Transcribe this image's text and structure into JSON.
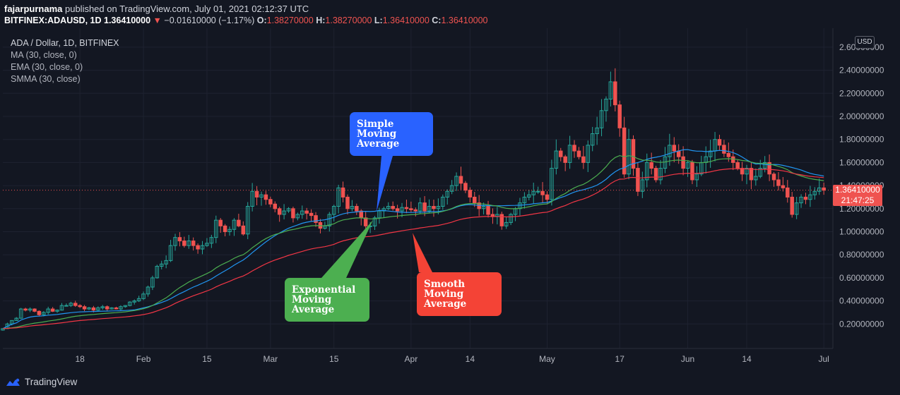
{
  "header": {
    "publisher": "fajarpurnama",
    "published_text": " published on TradingView.com, July 01, 2021 02:12:37 UTC",
    "symbol": "BITFINEX:ADAUSD, 1D",
    "last": "1.36410000",
    "change_arrow": "▼",
    "change": "−0.01610000 (−1.17%)",
    "o_label": "O:",
    "o_value": "1.38270000",
    "h_label": "H:",
    "h_value": "1.38270000",
    "l_label": "L:",
    "l_value": "1.36410000",
    "c_label": "C:",
    "c_value": "1.36410000"
  },
  "legend": {
    "title": "ADA / Dollar, 1D, BITFINEX",
    "ma": "MA (30, close, 0)",
    "ema": "EMA (30, close, 0)",
    "smma": "SMMA (30, close)"
  },
  "price_axis": {
    "currency_button": "USD",
    "current_price": "1.36410000",
    "countdown": "21:47:25"
  },
  "callouts": {
    "sma": "Simple Moving Average",
    "ema": "Exponential Moving Average",
    "smma": "Smooth Moving Average"
  },
  "footer": {
    "brand": "TradingView"
  },
  "colors": {
    "background": "#131722",
    "up": "#26a69a",
    "down": "#ef5350",
    "ma_line": "#2196f3",
    "ema_line": "#4caf50",
    "smma_line": "#f23645",
    "callout_sma": "#2962ff",
    "callout_ema": "#4caf50",
    "callout_smma": "#f44336"
  },
  "chart_data": {
    "type": "candlestick",
    "title": "ADA / Dollar, 1D, BITFINEX",
    "ylim": [
      0.0,
      2.6
    ],
    "y_ticks": [
      "0.20000000",
      "0.40000000",
      "0.60000000",
      "0.80000000",
      "1.00000000",
      "1.20000000",
      "1.40000000",
      "1.60000000",
      "1.80000000",
      "2.00000000",
      "2.20000000",
      "2.40000000",
      "2.60000000"
    ],
    "x_ticks": [
      {
        "label": "18",
        "day": 18
      },
      {
        "label": "Feb",
        "day": 32
      },
      {
        "label": "15",
        "day": 46
      },
      {
        "label": "Mar",
        "day": 60
      },
      {
        "label": "15",
        "day": 74
      },
      {
        "label": "Apr",
        "day": 91
      },
      {
        "label": "14",
        "day": 104
      },
      {
        "label": "May",
        "day": 121
      },
      {
        "label": "17",
        "day": 137
      },
      {
        "label": "Jun",
        "day": 152
      },
      {
        "label": "14",
        "day": 165
      },
      {
        "label": "Jul",
        "day": 182
      }
    ],
    "day_range": [
      1,
      184
    ],
    "close": [
      0.16,
      0.2,
      0.23,
      0.25,
      0.33,
      0.32,
      0.33,
      0.31,
      0.28,
      0.3,
      0.33,
      0.31,
      0.32,
      0.36,
      0.36,
      0.38,
      0.36,
      0.35,
      0.33,
      0.34,
      0.32,
      0.34,
      0.35,
      0.33,
      0.34,
      0.33,
      0.35,
      0.36,
      0.39,
      0.4,
      0.42,
      0.46,
      0.52,
      0.6,
      0.7,
      0.72,
      0.75,
      0.88,
      0.95,
      0.92,
      0.88,
      0.92,
      0.88,
      0.85,
      0.88,
      0.9,
      0.95,
      1.1,
      1.05,
      1.0,
      1.02,
      1.1,
      1.05,
      0.98,
      1.22,
      1.35,
      1.3,
      1.32,
      1.28,
      1.24,
      1.2,
      1.15,
      1.18,
      1.2,
      1.12,
      1.15,
      1.18,
      1.16,
      1.14,
      1.08,
      1.03,
      1.05,
      1.15,
      1.22,
      1.38,
      1.3,
      1.2,
      1.22,
      1.18,
      1.12,
      1.05,
      1.05,
      1.12,
      1.18,
      1.2,
      1.22,
      1.2,
      1.18,
      1.21,
      1.2,
      1.19,
      1.18,
      1.25,
      1.18,
      1.22,
      1.2,
      1.22,
      1.3,
      1.35,
      1.4,
      1.48,
      1.42,
      1.36,
      1.3,
      1.25,
      1.2,
      1.22,
      1.15,
      1.13,
      1.15,
      1.05,
      1.08,
      1.15,
      1.2,
      1.25,
      1.3,
      1.32,
      1.35,
      1.35,
      1.32,
      1.28,
      1.55,
      1.7,
      1.65,
      1.6,
      1.75,
      1.7,
      1.65,
      1.6,
      1.75,
      1.85,
      1.9,
      2.05,
      2.15,
      2.3,
      2.1,
      1.9,
      1.5,
      1.8,
      1.55,
      1.35,
      1.45,
      1.6,
      1.55,
      1.45,
      1.55,
      1.65,
      1.75,
      1.7,
      1.65,
      1.55,
      1.6,
      1.45,
      1.5,
      1.6,
      1.65,
      1.7,
      1.8,
      1.75,
      1.68,
      1.65,
      1.6,
      1.55,
      1.5,
      1.55,
      1.45,
      1.48,
      1.55,
      1.6,
      1.5,
      1.45,
      1.4,
      1.38,
      1.3,
      1.15,
      1.25,
      1.3,
      1.28,
      1.32,
      1.35,
      1.38,
      1.36
    ]
  }
}
